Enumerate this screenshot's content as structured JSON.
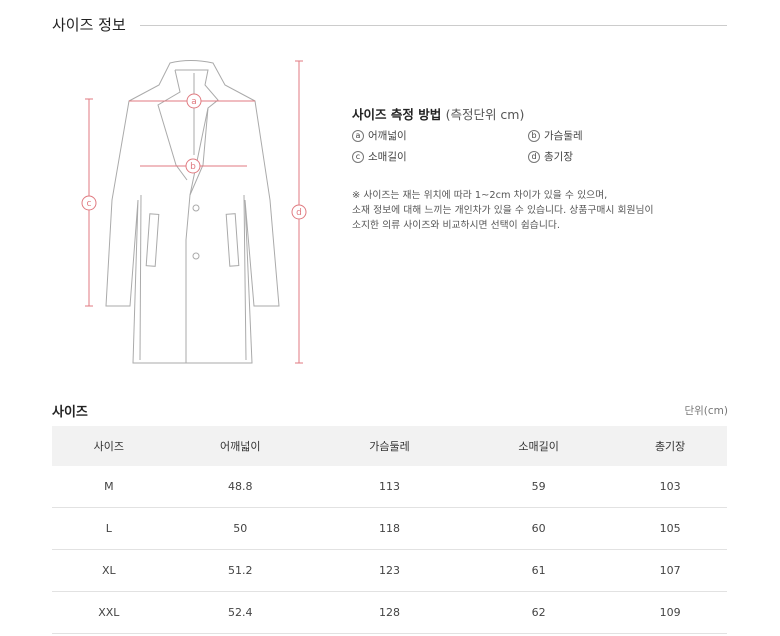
{
  "section_title": "사이즈 정보",
  "diagram": {
    "labels": {
      "a": "a",
      "b": "b",
      "c": "c",
      "d": "d"
    },
    "accent_color": "#e07a80"
  },
  "method": {
    "title": "사이즈 측정 방법",
    "unit_note": "(측정단위 cm)",
    "items": [
      {
        "key": "a",
        "label": "어깨넓이"
      },
      {
        "key": "b",
        "label": "가슴둘레"
      },
      {
        "key": "c",
        "label": "소매길이"
      },
      {
        "key": "d",
        "label": "총기장"
      }
    ],
    "note_lines": [
      "※ 사이즈는 재는 위치에 따라 1~2cm 차이가 있을 수 있으며,",
      "소재 정보에 대해 느끼는 개인차가 있을 수 있습니다. 상품구매시 회원님이",
      "소지한 의류 사이즈와 비교하시면 선택이 쉽습니다."
    ]
  },
  "size_table": {
    "title": "사이즈",
    "unit": "단위(cm)",
    "headers": [
      "사이즈",
      "어깨넓이",
      "가슴둘레",
      "소매길이",
      "총기장"
    ],
    "rows": [
      [
        "M",
        "48.8",
        "113",
        "59",
        "103"
      ],
      [
        "L",
        "50",
        "118",
        "60",
        "105"
      ],
      [
        "XL",
        "51.2",
        "123",
        "61",
        "107"
      ],
      [
        "XXL",
        "52.4",
        "128",
        "62",
        "109"
      ]
    ]
  }
}
